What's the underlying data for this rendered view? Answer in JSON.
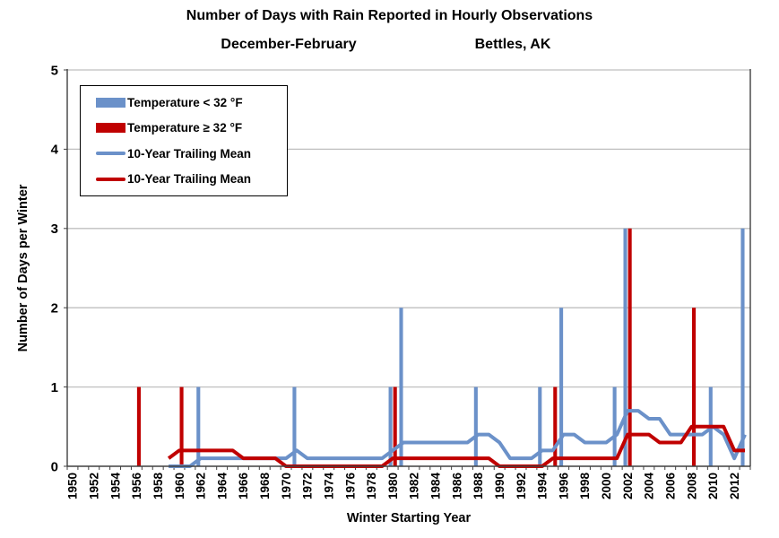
{
  "title": {
    "line1": "Number of Days with Rain Reported in Hourly Observations",
    "line2_left": "December-February",
    "line2_right": "Bettles, AK"
  },
  "legend": {
    "items": [
      {
        "label": "Temperature < 32 °F",
        "swatch": "bar",
        "color": "#6B91C9"
      },
      {
        "label": "Temperature ≥ 32 °F",
        "swatch": "bar",
        "color": "#C00000"
      },
      {
        "label": "10-Year Trailing Mean",
        "swatch": "line",
        "color": "#6B91C9"
      },
      {
        "label": "10-Year Trailing Mean",
        "swatch": "line",
        "color": "#C00000"
      }
    ]
  },
  "colors": {
    "blue": "#6B91C9",
    "red": "#C00000",
    "gridline": "#BFBFBF",
    "axis": "#404040",
    "text": "#000000"
  },
  "chart_data": {
    "type": "bar",
    "title": "Number of Days with Rain Reported in Hourly Observations",
    "subtitle": "December-February  Bettles, AK",
    "xlabel": "Winter Starting Year",
    "ylabel": "Number of Days per Winter",
    "ylim": [
      0,
      5
    ],
    "yticks": [
      0,
      1,
      2,
      3,
      4,
      5
    ],
    "grid": true,
    "legend_position": "top-left-inside",
    "categories": [
      1950,
      1951,
      1952,
      1953,
      1954,
      1955,
      1956,
      1957,
      1958,
      1959,
      1960,
      1961,
      1962,
      1963,
      1964,
      1965,
      1966,
      1967,
      1968,
      1969,
      1970,
      1971,
      1972,
      1973,
      1974,
      1975,
      1976,
      1977,
      1978,
      1979,
      1980,
      1981,
      1982,
      1983,
      1984,
      1985,
      1986,
      1987,
      1988,
      1989,
      1990,
      1991,
      1992,
      1993,
      1994,
      1995,
      1996,
      1997,
      1998,
      1999,
      2000,
      2001,
      2002,
      2003,
      2004,
      2005,
      2006,
      2007,
      2008,
      2009,
      2010,
      2011,
      2012,
      2013
    ],
    "xtick_labels": [
      "1950",
      "1952",
      "1954",
      "1956",
      "1958",
      "1960",
      "1962",
      "1964",
      "1966",
      "1968",
      "1970",
      "1972",
      "1974",
      "1976",
      "1978",
      "1980",
      "1982",
      "1984",
      "1986",
      "1988",
      "1990",
      "1992",
      "1994",
      "1996",
      "1998",
      "2000",
      "2002",
      "2004",
      "2006",
      "2008",
      "2010",
      "2012"
    ],
    "series": [
      {
        "name": "Temperature < 32 °F",
        "type": "bar",
        "color": "#6B91C9",
        "values": [
          0,
          0,
          0,
          0,
          0,
          0,
          0,
          0,
          0,
          0,
          0,
          0,
          1,
          0,
          0,
          0,
          0,
          0,
          0,
          0,
          0,
          1,
          0,
          0,
          0,
          0,
          0,
          0,
          0,
          0,
          1,
          2,
          0,
          0,
          0,
          0,
          0,
          0,
          1,
          0,
          0,
          0,
          0,
          0,
          1,
          0,
          2,
          0,
          0,
          0,
          0,
          1,
          3,
          0,
          0,
          0,
          0,
          0,
          0,
          0,
          1,
          0,
          0,
          3
        ]
      },
      {
        "name": "Temperature ≥ 32 °F",
        "type": "bar",
        "color": "#C00000",
        "values": [
          0,
          0,
          0,
          0,
          0,
          0,
          1,
          0,
          0,
          0,
          1,
          0,
          0,
          0,
          0,
          0,
          0,
          0,
          0,
          0,
          0,
          0,
          0,
          0,
          0,
          0,
          0,
          0,
          0,
          0,
          1,
          0,
          0,
          0,
          0,
          0,
          0,
          0,
          0,
          0,
          0,
          0,
          0,
          0,
          0,
          1,
          0,
          0,
          0,
          0,
          0,
          0,
          3,
          0,
          0,
          0,
          0,
          0,
          2,
          0,
          0,
          0,
          0,
          0
        ]
      },
      {
        "name": "10-Year Trailing Mean",
        "type": "line",
        "color": "#6B91C9",
        "start_year": 1959,
        "values": [
          0,
          0,
          0,
          0.1,
          0.1,
          0.1,
          0.1,
          0.1,
          0.1,
          0.1,
          0.1,
          0.1,
          0.2,
          0.1,
          0.1,
          0.1,
          0.1,
          0.1,
          0.1,
          0.1,
          0.1,
          0.2,
          0.3,
          0.3,
          0.3,
          0.3,
          0.3,
          0.3,
          0.3,
          0.4,
          0.4,
          0.3,
          0.1,
          0.1,
          0.1,
          0.2,
          0.2,
          0.4,
          0.4,
          0.3,
          0.3,
          0.3,
          0.4,
          0.7,
          0.7,
          0.6,
          0.6,
          0.4,
          0.4,
          0.4,
          0.4,
          0.5,
          0.4,
          0.1,
          0.4
        ]
      },
      {
        "name": "10-Year Trailing Mean",
        "type": "line",
        "color": "#C00000",
        "start_year": 1959,
        "values": [
          0.1,
          0.2,
          0.2,
          0.2,
          0.2,
          0.2,
          0.2,
          0.1,
          0.1,
          0.1,
          0.1,
          0,
          0,
          0,
          0,
          0,
          0,
          0,
          0,
          0,
          0,
          0.1,
          0.1,
          0.1,
          0.1,
          0.1,
          0.1,
          0.1,
          0.1,
          0.1,
          0.1,
          0,
          0,
          0,
          0,
          0,
          0.1,
          0.1,
          0.1,
          0.1,
          0.1,
          0.1,
          0.1,
          0.4,
          0.4,
          0.4,
          0.3,
          0.3,
          0.3,
          0.5,
          0.5,
          0.5,
          0.5,
          0.2,
          0.2
        ]
      }
    ]
  }
}
